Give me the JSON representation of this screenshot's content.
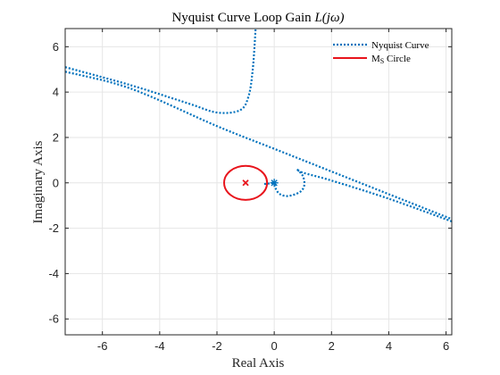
{
  "chart_data": {
    "type": "line",
    "title_prefix": "Nyquist Curve Loop Gain ",
    "title_math": "L(jω)",
    "xlabel": "Real Axis",
    "ylabel": "Imaginary Axis",
    "xlim": [
      -7.3,
      6.2
    ],
    "ylim": [
      -6.7,
      6.8
    ],
    "xticks": [
      -6,
      -4,
      -2,
      0,
      2,
      4,
      6
    ],
    "yticks": [
      -6,
      -4,
      -2,
      0,
      2,
      4,
      6
    ],
    "grid": true,
    "legend_position": "top-right",
    "colors": {
      "nyquist": "#0072BD",
      "ms": "#E8141C"
    },
    "series": [
      {
        "name": "Nyquist Curve",
        "style": "dotted",
        "segments": [
          [
            [
              -7.3,
              5.1
            ],
            [
              -5.0,
              4.3
            ],
            [
              -3.0,
              3.5
            ],
            [
              -2.0,
              3.1
            ],
            [
              -1.2,
              3.2
            ],
            [
              -0.9,
              3.8
            ],
            [
              -0.75,
              5.0
            ],
            [
              -0.65,
              6.8
            ]
          ],
          [
            [
              -7.3,
              4.9
            ],
            [
              -5.0,
              4.15
            ],
            [
              -2.0,
              2.5
            ],
            [
              0.0,
              1.5
            ],
            [
              2.0,
              0.5
            ],
            [
              4.0,
              -0.5
            ],
            [
              6.2,
              -1.6
            ]
          ],
          [
            [
              6.2,
              -1.7
            ],
            [
              4.0,
              -0.7
            ],
            [
              2.0,
              0.1
            ],
            [
              1.0,
              0.45
            ],
            [
              0.8,
              0.6
            ]
          ],
          [
            [
              0.8,
              0.6
            ],
            [
              1.0,
              0.3
            ],
            [
              1.05,
              -0.1
            ],
            [
              0.9,
              -0.4
            ],
            [
              0.5,
              -0.58
            ],
            [
              0.2,
              -0.5
            ],
            [
              0.05,
              -0.25
            ],
            [
              0.0,
              0.0
            ]
          ],
          [
            [
              -0.35,
              -0.05
            ],
            [
              -0.2,
              -0.03
            ],
            [
              -0.05,
              0.0
            ]
          ]
        ]
      },
      {
        "name": "M_s Circle",
        "legend_main": "M",
        "legend_sub": "S",
        "legend_rest": " Circle",
        "style": "solid",
        "center": [
          -1.0,
          0.0
        ],
        "radius": 0.75
      }
    ],
    "markers": [
      {
        "kind": "cross",
        "x": -1.0,
        "y": 0.0,
        "color": "#E8141C"
      },
      {
        "kind": "asterisk",
        "x": 0.0,
        "y": 0.0,
        "color": "#0072BD"
      }
    ]
  }
}
